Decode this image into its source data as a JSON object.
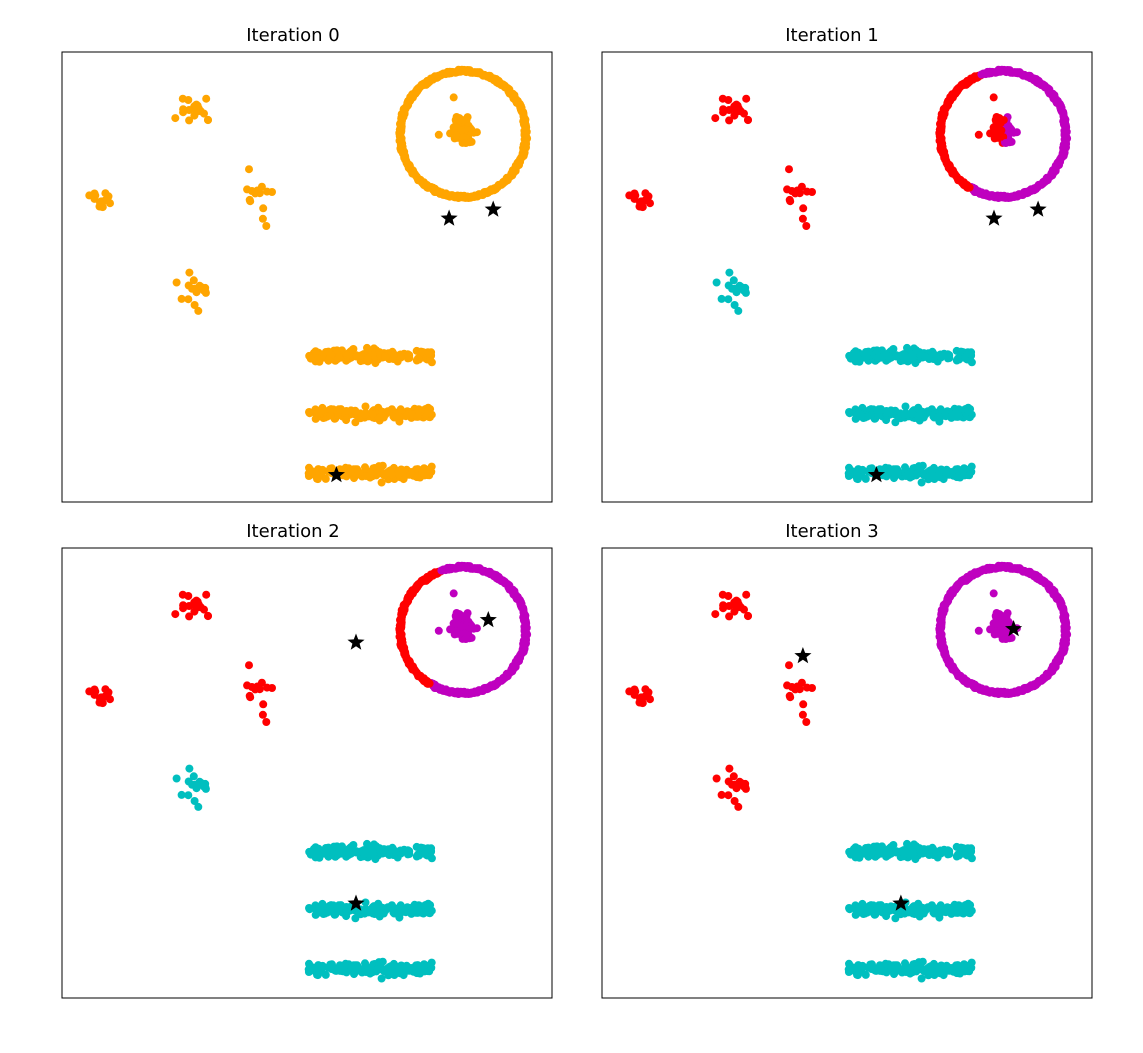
{
  "colors": {
    "orange": "#ffa500",
    "red": "#ff0000",
    "cyan": "#00bfbf",
    "magenta": "#bf00bf",
    "centroid": "#000000",
    "frame": "#000000"
  },
  "chart_data": [
    {
      "type": "scatter",
      "title": "Iteration 0",
      "xlabel": "",
      "ylabel": "",
      "xticks": [],
      "yticks": [],
      "grid": false,
      "legend": null,
      "coloring": {
        "ring_left": "orange",
        "ring_right": "orange",
        "ring_center": "orange",
        "b_upper": "orange",
        "b_mid_left": "orange",
        "b_mid_right": "orange",
        "b_lower": "orange",
        "stripes": "orange"
      },
      "centroids": [
        {
          "x": 79,
          "y": 63
        },
        {
          "x": 88,
          "y": 65
        },
        {
          "x": 56,
          "y": 6
        }
      ]
    },
    {
      "type": "scatter",
      "title": "Iteration 1",
      "xlabel": "",
      "ylabel": "",
      "xticks": [],
      "yticks": [],
      "grid": false,
      "legend": null,
      "coloring": {
        "ring_left": "red",
        "ring_right": "magenta",
        "ring_center": "red_magenta",
        "b_upper": "red",
        "b_mid_left": "red",
        "b_mid_right": "red",
        "b_lower": "cyan",
        "stripes": "cyan"
      },
      "centroids": [
        {
          "x": 80,
          "y": 63
        },
        {
          "x": 89,
          "y": 65
        },
        {
          "x": 56,
          "y": 6
        }
      ]
    },
    {
      "type": "scatter",
      "title": "Iteration 2",
      "xlabel": "",
      "ylabel": "",
      "xticks": [],
      "yticks": [],
      "grid": false,
      "legend": null,
      "coloring": {
        "ring_left": "red",
        "ring_right": "magenta",
        "ring_center": "magenta",
        "b_upper": "red",
        "b_mid_left": "red",
        "b_mid_right": "red",
        "b_lower": "cyan",
        "stripes": "cyan"
      },
      "centroids": [
        {
          "x": 60,
          "y": 79
        },
        {
          "x": 87,
          "y": 84
        },
        {
          "x": 60,
          "y": 21
        }
      ]
    },
    {
      "type": "scatter",
      "title": "Iteration 3",
      "xlabel": "",
      "ylabel": "",
      "xticks": [],
      "yticks": [],
      "grid": false,
      "legend": null,
      "coloring": {
        "ring_left": "magenta",
        "ring_right": "magenta",
        "ring_center": "magenta",
        "b_upper": "red",
        "b_mid_left": "red",
        "b_mid_right": "red",
        "b_lower": "red",
        "stripes": "cyan"
      },
      "centroids": [
        {
          "x": 41,
          "y": 76
        },
        {
          "x": 84,
          "y": 82
        },
        {
          "x": 61,
          "y": 21
        }
      ]
    }
  ]
}
